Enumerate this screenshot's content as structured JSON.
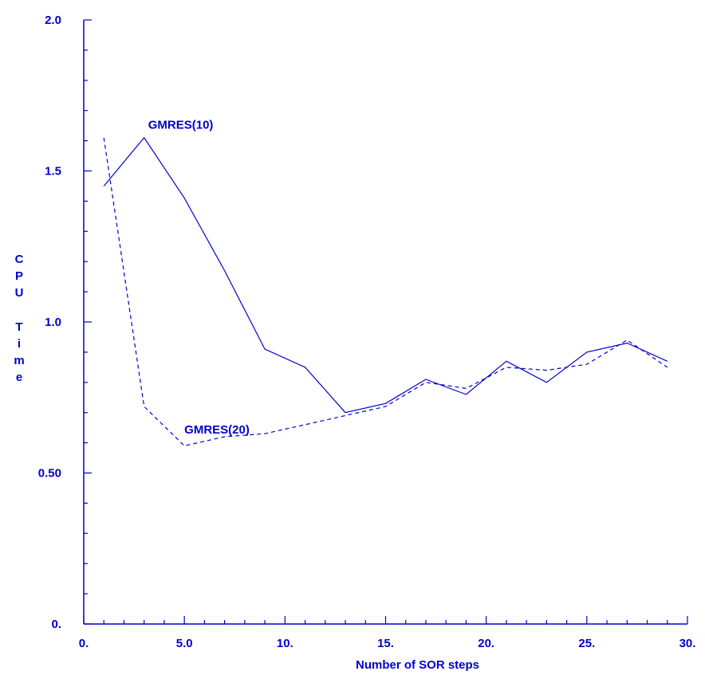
{
  "chart_data": {
    "type": "line",
    "title": "",
    "xlabel": "Number of SOR steps",
    "ylabel": "CPU Time",
    "xlim": [
      0,
      30
    ],
    "ylim": [
      0,
      2
    ],
    "x_tick_values": [
      0,
      5,
      10,
      15,
      20,
      25,
      30
    ],
    "x_tick_labels": [
      "0.",
      "5.0",
      "10.",
      "15.",
      "20.",
      "25.",
      "30."
    ],
    "y_tick_values": [
      0,
      0.5,
      1,
      1.5,
      2
    ],
    "y_tick_labels": [
      "0.",
      "0.50",
      "1.0",
      "1.5",
      "2.0"
    ],
    "color": "#0000cc",
    "grid": false,
    "series": [
      {
        "name": "GMRES(10)",
        "style": "solid",
        "x": [
          1,
          3,
          5,
          7,
          9,
          11,
          13,
          15,
          17,
          19,
          21,
          23,
          25,
          27,
          29
        ],
        "y": [
          1.45,
          1.61,
          1.41,
          1.17,
          0.91,
          0.85,
          0.7,
          0.73,
          0.81,
          0.76,
          0.87,
          0.8,
          0.9,
          0.93,
          0.87
        ]
      },
      {
        "name": "GMRES(20)",
        "style": "dashed",
        "x": [
          1,
          3,
          5,
          7,
          9,
          11,
          13,
          15,
          17,
          19,
          21,
          23,
          25,
          27,
          29
        ],
        "y": [
          1.61,
          0.72,
          0.59,
          0.62,
          0.63,
          0.66,
          0.69,
          0.72,
          0.8,
          0.78,
          0.85,
          0.84,
          0.86,
          0.94,
          0.85
        ]
      }
    ],
    "annotations": [
      {
        "text": "GMRES(10)",
        "x": 3.2,
        "y": 1.64
      },
      {
        "text": "GMRES(20)",
        "x": 5.0,
        "y": 0.63
      }
    ]
  }
}
